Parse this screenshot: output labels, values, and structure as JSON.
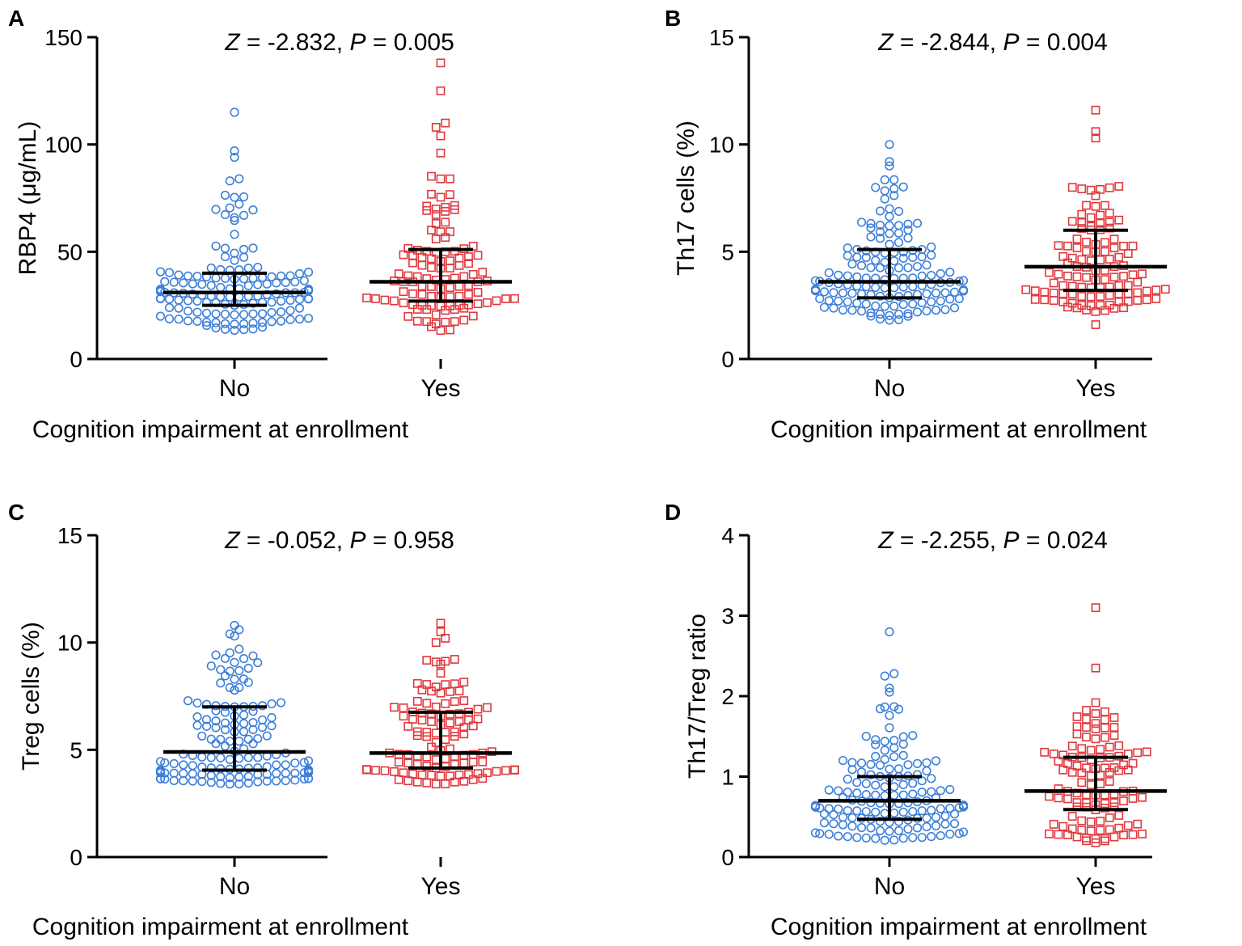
{
  "chart_data": [
    {
      "panel": "A",
      "type": "scatter",
      "subtype": "dot-plot-median-iqr",
      "title_parts": {
        "z_label": "Z",
        "z_value": " = -2.832, ",
        "p_label": "P",
        "p_value": " = 0.005"
      },
      "xlabel": "Cognition impairment at enrollment",
      "ylabel": "RBP4 (μg/mL)",
      "categories": [
        "No",
        "Yes"
      ],
      "ylim": [
        0,
        150
      ],
      "yticks": [
        0,
        50,
        100,
        150
      ],
      "series": [
        {
          "name": "No",
          "color": "#3d7fd9",
          "marker": "circle",
          "n": 150,
          "min": 13,
          "q1": 25,
          "median": 31,
          "q3": 40,
          "max": 80,
          "outliers": [
            84,
            83,
            94,
            97,
            115
          ]
        },
        {
          "name": "Yes",
          "color": "#e0383e",
          "marker": "square",
          "n": 115,
          "min": 13,
          "q1": 27,
          "median": 36,
          "q3": 51,
          "max": 90,
          "outliers": [
            96,
            104,
            108,
            110,
            125,
            138
          ]
        }
      ]
    },
    {
      "panel": "B",
      "type": "scatter",
      "subtype": "dot-plot-median-iqr",
      "title_parts": {
        "z_label": "Z",
        "z_value": " = -2.844, ",
        "p_label": "P",
        "p_value": " = 0.004"
      },
      "xlabel": "Cognition impairment at enrollment",
      "ylabel": "Th17 cells (%)",
      "categories": [
        "No",
        "Yes"
      ],
      "ylim": [
        0,
        15
      ],
      "yticks": [
        0,
        5,
        10,
        15
      ],
      "series": [
        {
          "name": "No",
          "color": "#3d7fd9",
          "marker": "circle",
          "n": 150,
          "min": 1.8,
          "q1": 2.85,
          "median": 3.6,
          "q3": 5.1,
          "max": 8.4,
          "outliers": [
            9.0,
            9.2,
            10.0
          ]
        },
        {
          "name": "Yes",
          "color": "#e0383e",
          "marker": "square",
          "n": 115,
          "min": 2.2,
          "q1": 3.2,
          "median": 4.3,
          "q3": 6.0,
          "max": 8.1,
          "outliers": [
            1.6,
            10.3,
            10.6,
            11.6
          ]
        }
      ]
    },
    {
      "panel": "C",
      "type": "scatter",
      "subtype": "dot-plot-median-iqr",
      "title_parts": {
        "z_label": "Z",
        "z_value": " = -0.052, ",
        "p_label": "P",
        "p_value": " = 0.958"
      },
      "xlabel": "Cognition impairment at enrollment",
      "ylabel": "Treg cells (%)",
      "categories": [
        "No",
        "Yes"
      ],
      "ylim": [
        0,
        15
      ],
      "yticks": [
        0,
        5,
        10,
        15
      ],
      "series": [
        {
          "name": "No",
          "color": "#3d7fd9",
          "marker": "circle",
          "n": 150,
          "min": 3.4,
          "q1": 4.05,
          "median": 4.9,
          "q3": 7.0,
          "max": 10.0,
          "outliers": [
            10.3,
            10.4,
            10.6,
            10.8
          ]
        },
        {
          "name": "Yes",
          "color": "#e0383e",
          "marker": "square",
          "n": 115,
          "min": 3.4,
          "q1": 4.15,
          "median": 4.85,
          "q3": 6.75,
          "max": 9.3,
          "outliers": [
            10.0,
            10.2,
            10.5,
            10.9
          ]
        }
      ]
    },
    {
      "panel": "D",
      "type": "scatter",
      "subtype": "dot-plot-median-iqr",
      "title_parts": {
        "z_label": "Z",
        "z_value": " = -2.255, ",
        "p_label": "P",
        "p_value": " = 0.024"
      },
      "xlabel": "Cognition impairment at enrollment",
      "ylabel": "Th17/Treg ratio",
      "categories": [
        "No",
        "Yes"
      ],
      "ylim": [
        0,
        4
      ],
      "yticks": [
        0,
        1,
        2,
        3,
        4
      ],
      "series": [
        {
          "name": "No",
          "color": "#3d7fd9",
          "marker": "circle",
          "n": 150,
          "min": 0.2,
          "q1": 0.47,
          "median": 0.7,
          "q3": 1.0,
          "max": 1.95,
          "outliers": [
            2.05,
            2.1,
            2.25,
            2.28,
            2.8
          ]
        },
        {
          "name": "Yes",
          "color": "#e0383e",
          "marker": "square",
          "n": 115,
          "min": 0.17,
          "q1": 0.59,
          "median": 0.82,
          "q3": 1.24,
          "max": 1.92,
          "outliers": [
            2.35,
            3.1
          ]
        }
      ]
    }
  ]
}
